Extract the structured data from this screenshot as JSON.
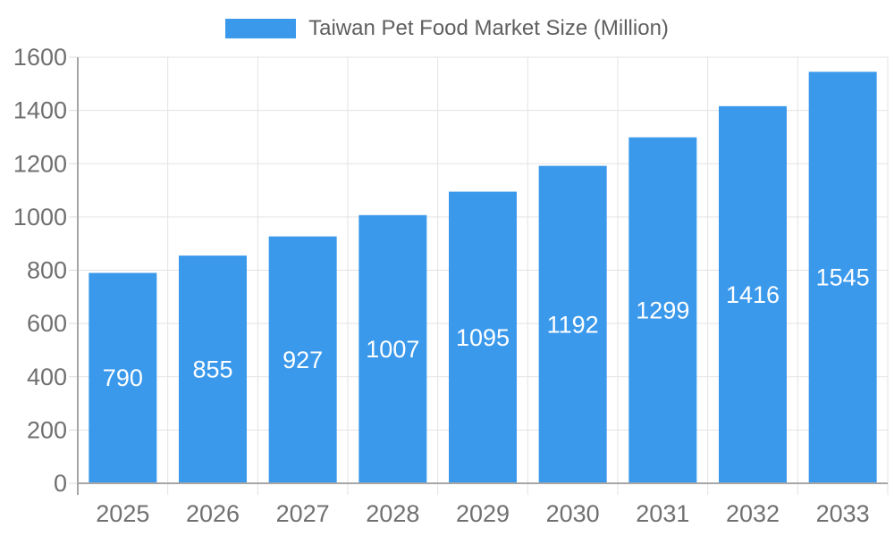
{
  "legend": {
    "label": "Taiwan Pet Food Market Size (Million)"
  },
  "chart_data": {
    "type": "bar",
    "title": "Taiwan Pet Food Market Size (Million)",
    "categories": [
      "2025",
      "2026",
      "2027",
      "2028",
      "2029",
      "2030",
      "2031",
      "2032",
      "2033"
    ],
    "series": [
      {
        "name": "Taiwan Pet Food Market Size (Million)",
        "values": [
          790,
          855,
          927,
          1007,
          1095,
          1192,
          1299,
          1416,
          1545
        ]
      }
    ],
    "xlabel": "",
    "ylabel": "",
    "ylim": [
      0,
      1600
    ],
    "ytick_step": 200,
    "ytick_labels": [
      "0",
      "200",
      "400",
      "600",
      "800",
      "1000",
      "1200",
      "1400",
      "1600"
    ],
    "grid": true,
    "legend_position": "top-center",
    "value_label_position": "inside-middle",
    "colors": {
      "bar": "#3b99ec",
      "grid": "#e3e3e3",
      "tick": "#dcdcdc",
      "axis": "#a6a6a6",
      "axis_text": "#707070",
      "legend_text": "#5f5f5f",
      "value_text": "#ffffff",
      "background": "#ffffff"
    }
  }
}
